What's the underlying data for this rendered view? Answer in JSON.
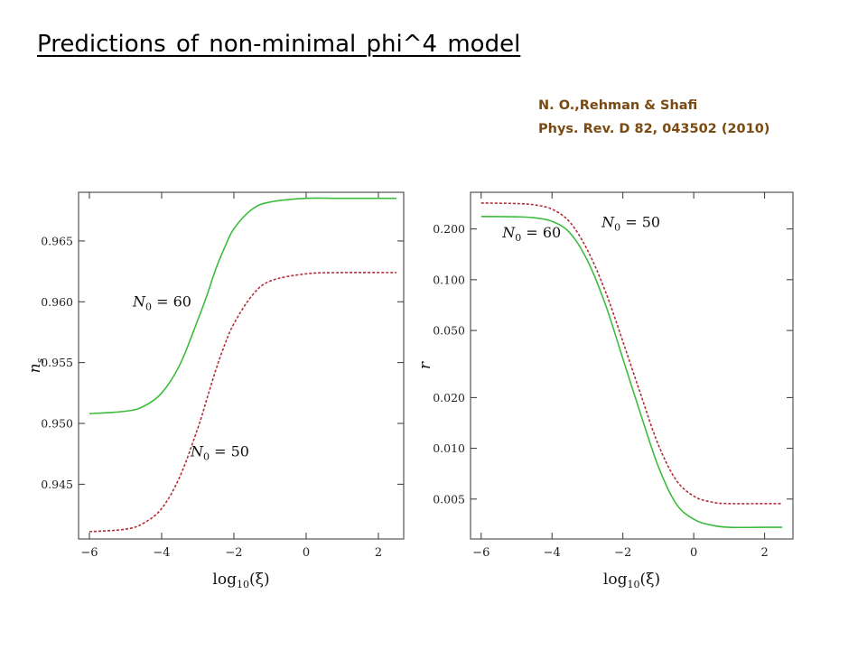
{
  "slide": {
    "title": "Predictions of  non-minimal phi^4 model",
    "citation_line1": "N. O.,Rehman & Shafi",
    "citation_line2": "Phys. Rev. D 82, 043502 (2010)"
  },
  "colors": {
    "n60": "#3cbc3c",
    "n50": "#b0303a",
    "citation": "#7a4a12"
  },
  "chart_data": [
    {
      "type": "line",
      "xlabel": "log10(ξ)",
      "ylabel": "ns",
      "xlim": [
        -6.3,
        2.7
      ],
      "ylim": [
        0.9405,
        0.969
      ],
      "x_ticks": [
        -6,
        -4,
        -2,
        0,
        2
      ],
      "y_ticks": [
        0.945,
        0.95,
        0.955,
        0.96,
        0.965
      ],
      "y_tick_labels": [
        "0.945",
        "0.950",
        "0.955",
        "0.960",
        "0.965"
      ],
      "grid": false,
      "series": [
        {
          "name": "N0 = 60",
          "style": "solid",
          "color": "#3cbc3c",
          "x": [
            -6.0,
            -5.0,
            -4.5,
            -4.0,
            -3.5,
            -3.0,
            -2.75,
            -2.5,
            -2.25,
            -2.0,
            -1.5,
            -1.0,
            0.0,
            1.0,
            2.5
          ],
          "y": [
            0.9508,
            0.951,
            0.9514,
            0.9525,
            0.9548,
            0.9585,
            0.9605,
            0.9627,
            0.9645,
            0.966,
            0.9676,
            0.9682,
            0.9685,
            0.9685,
            0.9685
          ]
        },
        {
          "name": "N0 = 50",
          "style": "dashed",
          "color": "#b0303a",
          "x": [
            -6.0,
            -5.0,
            -4.5,
            -4.0,
            -3.5,
            -3.0,
            -2.75,
            -2.5,
            -2.25,
            -2.0,
            -1.5,
            -1.0,
            0.0,
            1.0,
            2.5
          ],
          "y": [
            0.9411,
            0.9413,
            0.9418,
            0.943,
            0.9456,
            0.9496,
            0.952,
            0.9544,
            0.9565,
            0.9582,
            0.9605,
            0.9617,
            0.9623,
            0.9624,
            0.9624
          ]
        }
      ],
      "annotations": [
        {
          "label": "N",
          "sub": "0",
          "text": " = 60",
          "x": -4.8,
          "y": 0.9596
        },
        {
          "label": "N",
          "sub": "0",
          "text": " = 50",
          "x": -3.2,
          "y": 0.9473
        }
      ]
    },
    {
      "type": "line",
      "xlabel": "log10(ξ)",
      "ylabel": "r",
      "yscale": "log",
      "xlim": [
        -6.3,
        2.8
      ],
      "ylim": [
        0.0029,
        0.33
      ],
      "x_ticks": [
        -6,
        -4,
        -2,
        0,
        2
      ],
      "y_ticks": [
        0.005,
        0.01,
        0.02,
        0.05,
        0.1,
        0.2
      ],
      "y_tick_labels": [
        "0.005",
        "0.010",
        "0.020",
        "0.050",
        "0.100",
        "0.200"
      ],
      "grid": false,
      "series": [
        {
          "name": "N0 = 60",
          "style": "solid",
          "color": "#3cbc3c",
          "x": [
            -6.0,
            -5.0,
            -4.5,
            -4.0,
            -3.5,
            -3.0,
            -2.5,
            -2.0,
            -1.5,
            -1.0,
            -0.5,
            0.0,
            0.5,
            1.0,
            2.0,
            2.5
          ],
          "y": [
            0.237,
            0.236,
            0.233,
            0.222,
            0.19,
            0.13,
            0.072,
            0.034,
            0.016,
            0.0078,
            0.0047,
            0.0038,
            0.0035,
            0.0034,
            0.0034,
            0.0034
          ]
        },
        {
          "name": "N0 = 50",
          "style": "dashed",
          "color": "#b0303a",
          "x": [
            -6.0,
            -5.0,
            -4.5,
            -4.0,
            -3.5,
            -3.0,
            -2.5,
            -2.0,
            -1.5,
            -1.0,
            -0.5,
            0.0,
            0.5,
            1.0,
            2.0,
            2.5
          ],
          "y": [
            0.285,
            0.283,
            0.278,
            0.262,
            0.22,
            0.15,
            0.086,
            0.043,
            0.021,
            0.0105,
            0.0065,
            0.0052,
            0.0048,
            0.0047,
            0.0047,
            0.0047
          ]
        }
      ],
      "annotations": [
        {
          "label": "N",
          "sub": "0",
          "text": " = 60",
          "x": -5.4,
          "y": 0.178
        },
        {
          "label": "N",
          "sub": "0",
          "text": " = 50",
          "x": -2.6,
          "y": 0.205
        }
      ]
    }
  ]
}
